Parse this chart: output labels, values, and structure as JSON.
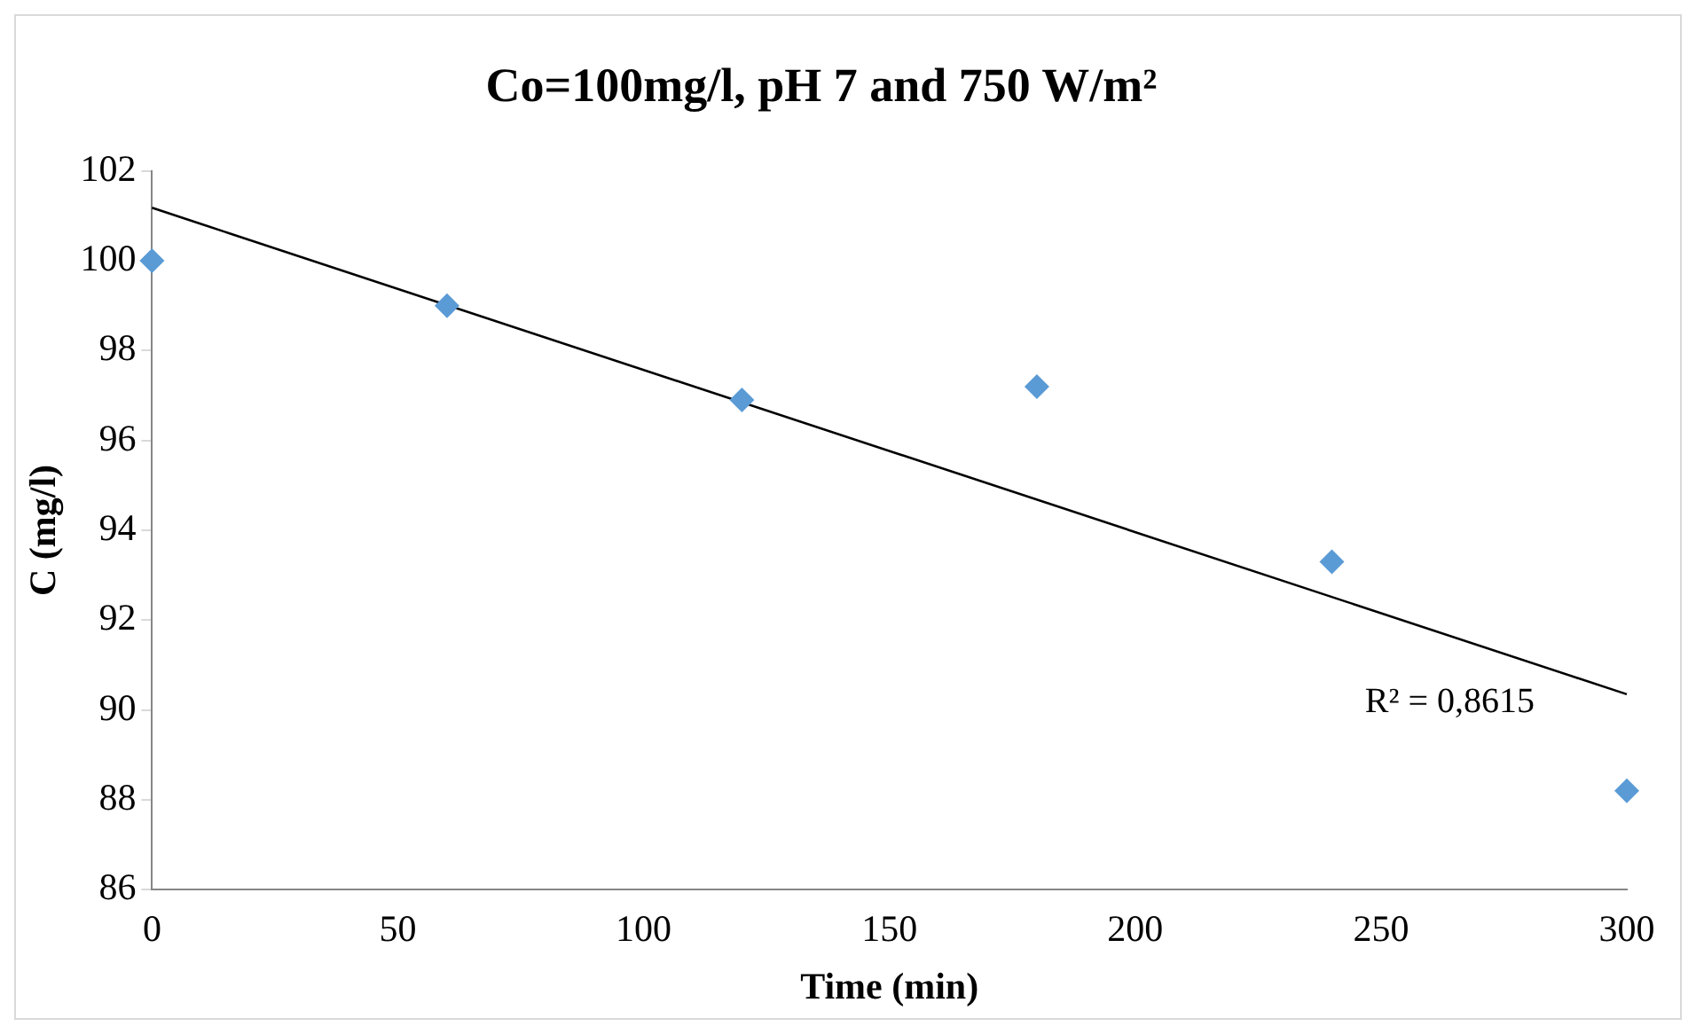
{
  "chart_data": {
    "type": "scatter",
    "title": "Co=100mg/l, pH 7 and 750 W/m²",
    "xlabel": "Time (min)",
    "ylabel": "C (mg/l)",
    "x": [
      0,
      60,
      120,
      180,
      240,
      300
    ],
    "series": [
      {
        "color": "#5b9bd5",
        "marker": "diamond",
        "values": [
          100,
          99,
          96.9,
          97.2,
          93.3,
          88.2
        ]
      },
      {
        "type": "line",
        "color": "#000000",
        "marker": "none",
        "x": [
          0,
          300
        ],
        "values": [
          101.18,
          90.35
        ]
      }
    ],
    "xlim": [
      0,
      300
    ],
    "xticks": [
      0,
      50,
      100,
      150,
      200,
      250,
      300
    ],
    "ylim": [
      86,
      102
    ],
    "yticks": [
      86,
      88,
      90,
      92,
      94,
      96,
      98,
      100,
      102
    ],
    "grid": false,
    "legend": false,
    "annotations": [
      "R² = 0,8615"
    ]
  }
}
